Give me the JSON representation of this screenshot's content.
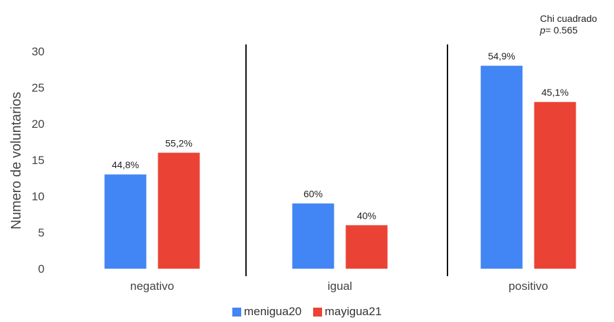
{
  "chart_data": {
    "type": "bar",
    "categories": [
      "negativo",
      "igual",
      "positivo"
    ],
    "series": [
      {
        "name": "menigua20",
        "color": "#4285f4",
        "values": [
          13,
          9,
          28
        ],
        "labels": [
          "44,8%",
          "60%",
          "54,9%"
        ]
      },
      {
        "name": "mayigua21",
        "color": "#ea4335",
        "values": [
          16,
          6,
          23
        ],
        "labels": [
          "55,2%",
          "40%",
          "45,1%"
        ]
      }
    ],
    "ylabel": "Numero de voluntarios",
    "ylim": [
      0,
      30
    ],
    "yticks": [
      0,
      5,
      10,
      15,
      20,
      25,
      30
    ],
    "grid": false,
    "legend_position": "bottom",
    "annotation": {
      "line1": "Chi cuadrado",
      "p_symbol": "p",
      "p_text": "= 0.565"
    }
  }
}
